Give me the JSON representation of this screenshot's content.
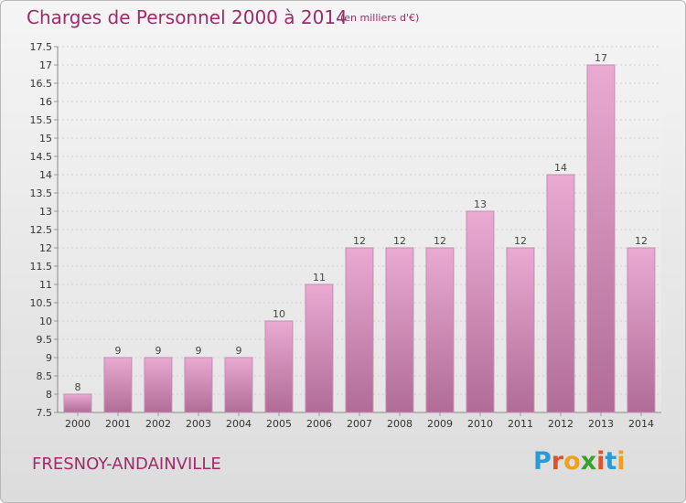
{
  "header": {
    "title": "Charges de Personnel 2000 à 2014",
    "subtitle": "(en milliers d'€)"
  },
  "footer": {
    "place": "FRESNOY-ANDAINVILLE",
    "logo_letters": [
      "P",
      "r",
      "o",
      "x",
      "i",
      "t",
      "i"
    ]
  },
  "colors": {
    "text_accent": "#a02a6a",
    "bar_top": "#eaaad2",
    "bar_bottom": "#b06c96",
    "bar_stroke": "#c78bb0",
    "grid": "#d0d0d0",
    "axis_text": "#333333",
    "logo": [
      "#2a9ad6",
      "#e0522a",
      "#f0a020",
      "#3aa030",
      "#e0522a",
      "#2a9ad6",
      "#f0a020"
    ]
  },
  "chart_data": {
    "type": "bar",
    "categories": [
      "2000",
      "2001",
      "2002",
      "2003",
      "2004",
      "2005",
      "2006",
      "2007",
      "2008",
      "2009",
      "2010",
      "2011",
      "2012",
      "2013",
      "2014"
    ],
    "values": [
      8,
      9,
      9,
      9,
      9,
      10,
      11,
      12,
      12,
      12,
      13,
      12,
      14,
      17,
      12
    ],
    "data_labels": [
      "8",
      "9",
      "9",
      "9",
      "9",
      "10",
      "11",
      "12",
      "12",
      "12",
      "13",
      "12",
      "14",
      "17",
      "12"
    ],
    "title": "Charges de Personnel 2000 à 2014",
    "subtitle": "(en milliers d'€)",
    "xlabel": "",
    "ylabel": "",
    "ylim": [
      7.5,
      17.5
    ],
    "yticks": [
      "7.5",
      "8",
      "8.5",
      "9",
      "9.5",
      "10",
      "10.5",
      "11",
      "11.5",
      "12",
      "12.5",
      "13",
      "13.5",
      "14",
      "14.5",
      "15",
      "15.5",
      "16",
      "16.5",
      "17",
      "17.5"
    ],
    "grid": true,
    "legend": "none"
  }
}
